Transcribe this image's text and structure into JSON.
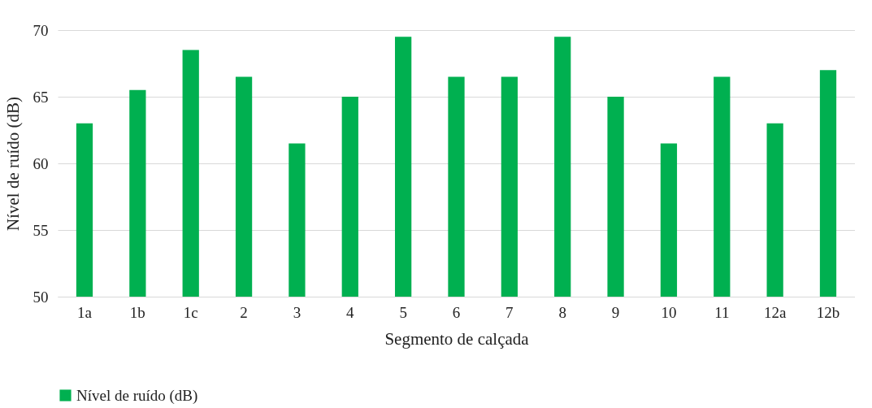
{
  "chart_data": {
    "type": "bar",
    "xlabel": "Segmento de calçada",
    "ylabel": "Nível de ruído (dB)",
    "categories": [
      "1a",
      "1b",
      "1c",
      "2",
      "3",
      "4",
      "5",
      "6",
      "7",
      "8",
      "9",
      "10",
      "11",
      "12a",
      "12b"
    ],
    "series": [
      {
        "name": "Nível de ruído (dB)",
        "color": "#00b050",
        "values": [
          63,
          65.5,
          68.5,
          66.5,
          61.5,
          65,
          69.5,
          66.5,
          66.5,
          69.5,
          65,
          61.5,
          66.5,
          63,
          67
        ]
      }
    ],
    "ylim": [
      50,
      70
    ],
    "yticks": [
      50,
      55,
      60,
      65,
      70
    ],
    "grid": "y",
    "legend": "bottom"
  }
}
